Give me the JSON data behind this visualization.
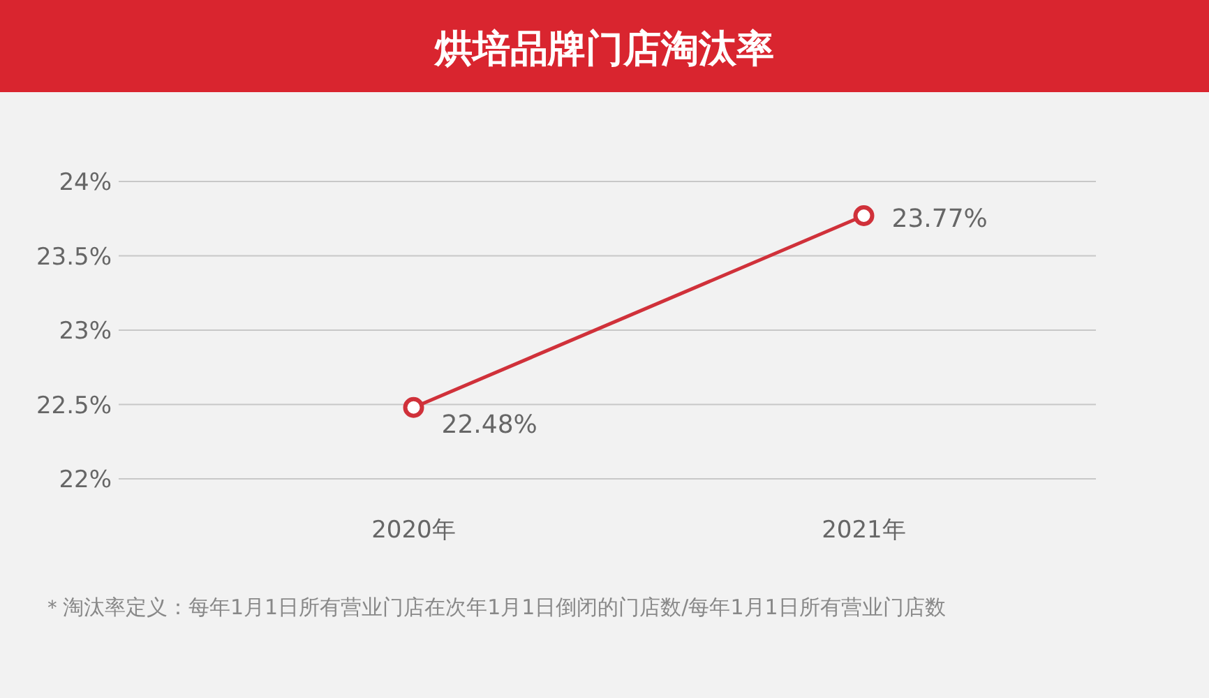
{
  "chart_data": {
    "type": "line",
    "title": "烘培品牌门店淘汰率",
    "categories": [
      "2020年",
      "2021年"
    ],
    "series": [
      {
        "color": "#d0313a",
        "values": [
          22.48,
          23.77
        ],
        "value_labels": [
          "22.48%",
          "23.77%"
        ]
      }
    ],
    "ylim": [
      22,
      24
    ],
    "yticks": [
      {
        "value": 22,
        "label": "22%"
      },
      {
        "value": 22.5,
        "label": "22.5%"
      },
      {
        "value": 23,
        "label": "23%"
      },
      {
        "value": 23.5,
        "label": "23.5%"
      },
      {
        "value": 24,
        "label": "24%"
      }
    ],
    "grid": "y",
    "marker": "circle",
    "line_style": "solid",
    "annotations": [
      "＊淘汰率定义：每年1月1日所有营业门店在次年1月1日倒闭的门店数/每年1月1日所有营业门店数"
    ]
  }
}
